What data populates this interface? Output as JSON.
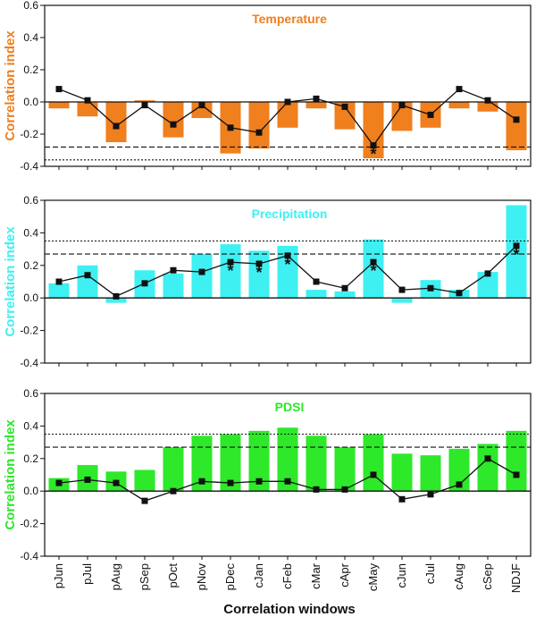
{
  "figure": {
    "xlabel": "Correlation windows"
  },
  "chart_data": [
    {
      "type": "bar",
      "title": "Temperature",
      "ylabel": "Correlation index",
      "ylim": [
        -0.4,
        0.6
      ],
      "yticks": [
        "-0.4",
        "-0.2",
        "0.0",
        "0.2",
        "0.4",
        "0.6"
      ],
      "color": "#f07f1e",
      "categories": [
        "pJun",
        "pJul",
        "pAug",
        "pSep",
        "pOct",
        "pNov",
        "pDec",
        "cJan",
        "cFeb",
        "cMar",
        "cApr",
        "cMay",
        "cJun",
        "cJul",
        "cAug",
        "cSep",
        "NDJF"
      ],
      "bars": [
        -0.04,
        -0.09,
        -0.25,
        0.01,
        -0.22,
        -0.1,
        -0.32,
        -0.29,
        -0.16,
        -0.04,
        -0.17,
        -0.35,
        -0.18,
        -0.16,
        -0.04,
        -0.06,
        -0.3
      ],
      "line": [
        0.08,
        0.01,
        -0.15,
        -0.02,
        -0.14,
        -0.02,
        -0.16,
        -0.19,
        0.0,
        0.02,
        -0.03,
        -0.27,
        -0.02,
        -0.08,
        0.08,
        0.01,
        -0.11
      ],
      "significance_dashed": -0.28,
      "significance_dotted": -0.36,
      "significant_windows": [
        "cMay"
      ]
    },
    {
      "type": "bar",
      "title": "Precipitation",
      "ylabel": "Correlation index",
      "ylim": [
        -0.4,
        0.6
      ],
      "yticks": [
        "-0.4",
        "-0.2",
        "0.0",
        "0.2",
        "0.4",
        "0.6"
      ],
      "color": "#3ff0f2",
      "categories": [
        "pJun",
        "pJul",
        "pAug",
        "pSep",
        "pOct",
        "pNov",
        "pDec",
        "cJan",
        "cFeb",
        "cMar",
        "cApr",
        "cMay",
        "cJun",
        "cJul",
        "cAug",
        "cSep",
        "NDJF"
      ],
      "bars": [
        0.09,
        0.2,
        -0.03,
        0.17,
        0.15,
        0.27,
        0.33,
        0.29,
        0.32,
        0.05,
        0.04,
        0.36,
        -0.03,
        0.11,
        0.05,
        0.16,
        0.57
      ],
      "line": [
        0.1,
        0.14,
        0.01,
        0.09,
        0.17,
        0.16,
        0.22,
        0.21,
        0.26,
        0.1,
        0.06,
        0.22,
        0.05,
        0.06,
        0.03,
        0.15,
        0.32
      ],
      "significance_dashed": 0.27,
      "significance_dotted": 0.35,
      "significant_windows": [
        "pDec",
        "cJan",
        "cFeb",
        "cMay",
        "NDJF"
      ]
    },
    {
      "type": "bar",
      "title": "PDSI",
      "ylabel": "Correlation index",
      "ylim": [
        -0.4,
        0.6
      ],
      "yticks": [
        "-0.4",
        "-0.2",
        "0.0",
        "0.2",
        "0.4",
        "0.6"
      ],
      "color": "#2ee82a",
      "categories": [
        "pJun",
        "pJul",
        "pAug",
        "pSep",
        "pOct",
        "pNov",
        "pDec",
        "cJan",
        "cFeb",
        "cMar",
        "cApr",
        "cMay",
        "cJun",
        "cJul",
        "cAug",
        "cSep",
        "NDJF"
      ],
      "bars": [
        0.08,
        0.16,
        0.12,
        0.13,
        0.27,
        0.34,
        0.35,
        0.37,
        0.39,
        0.34,
        0.27,
        0.35,
        0.23,
        0.22,
        0.26,
        0.29,
        0.37
      ],
      "line": [
        0.05,
        0.07,
        0.05,
        -0.06,
        0.0,
        0.06,
        0.05,
        0.06,
        0.06,
        0.01,
        0.01,
        0.1,
        -0.05,
        -0.02,
        0.04,
        0.2,
        0.1
      ],
      "significance_dashed": 0.27,
      "significance_dotted": 0.35,
      "significant_windows": []
    }
  ]
}
